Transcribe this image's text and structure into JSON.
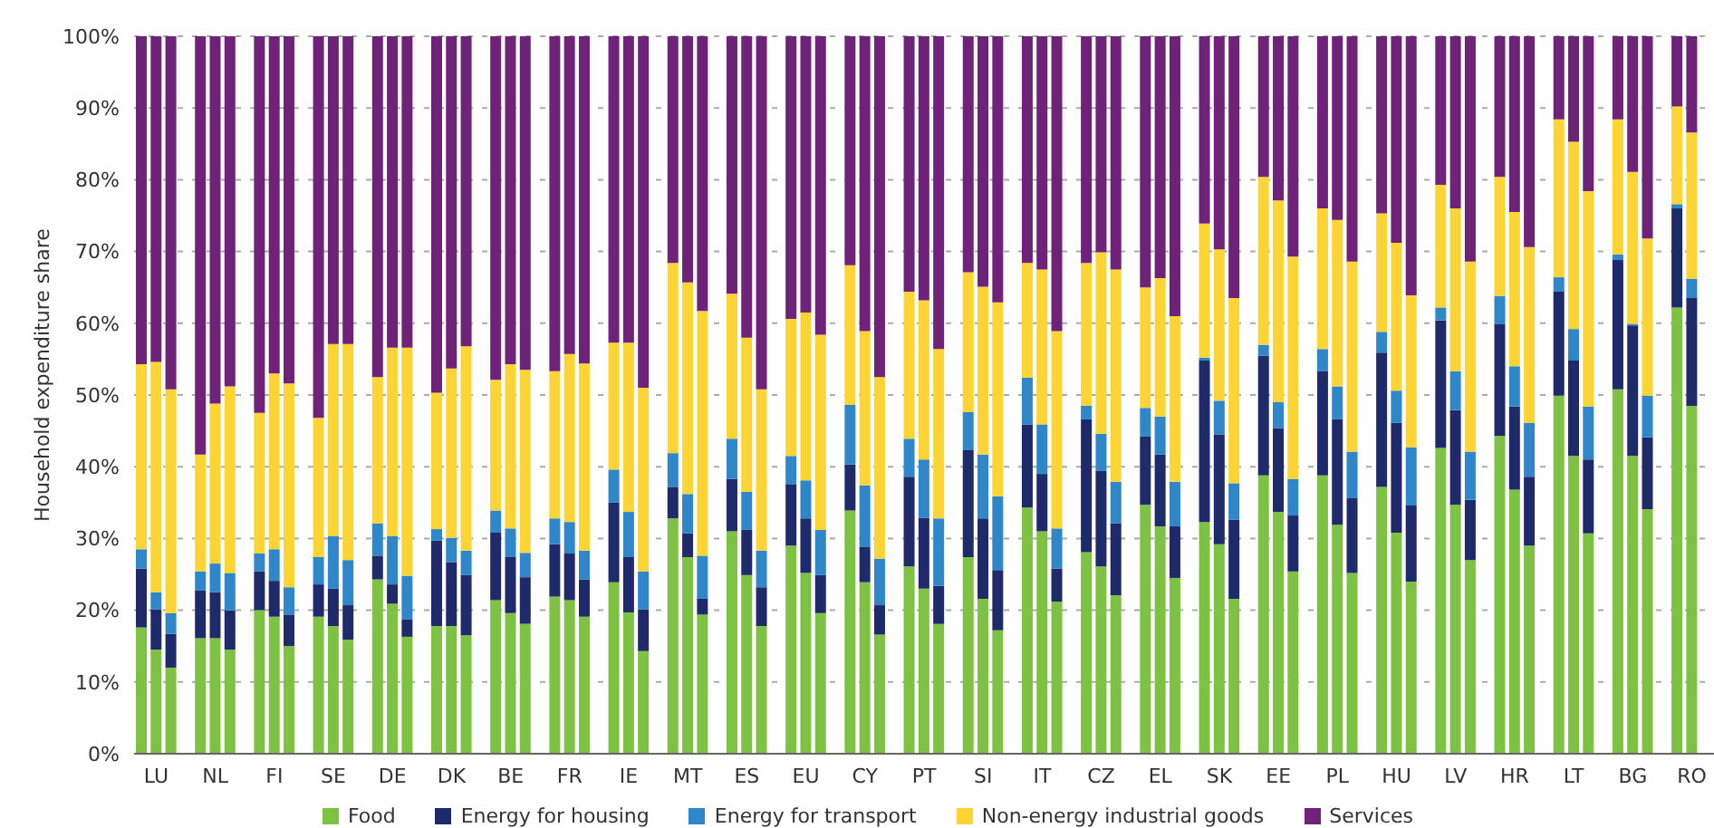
{
  "chart_data": {
    "type": "bar",
    "stacked": true,
    "ylabel": "Household expenditure share",
    "categories": [
      null,
      "LU",
      null,
      null,
      null,
      "NL",
      null,
      null,
      null,
      "FI",
      null,
      null,
      null,
      "SE",
      null,
      null,
      null,
      "DE",
      null,
      null,
      null,
      "DK",
      null,
      null,
      null,
      "BE",
      null,
      null,
      null,
      "FR",
      null,
      null,
      null,
      "IE",
      null,
      null,
      null,
      "MT",
      null,
      null,
      null,
      "ES",
      null,
      null,
      null,
      "EU",
      null,
      null,
      null,
      "CY",
      null,
      null,
      null,
      "PT",
      null,
      null,
      null,
      "SI",
      null,
      null,
      null,
      "IT",
      null,
      null,
      null,
      "CZ",
      null,
      null,
      null,
      "EL",
      null,
      null,
      null,
      "SK",
      null,
      null,
      null,
      "EE",
      null,
      null,
      null,
      "PL",
      null,
      null,
      null,
      "HU",
      null,
      null,
      null,
      "LV",
      null,
      null,
      null,
      "HR",
      null,
      null,
      null,
      "LT",
      null,
      null,
      null,
      "BG",
      null,
      null,
      null,
      "RO",
      null
    ],
    "series": [
      {
        "name": "Food",
        "color": "#7dc242",
        "values": [
          17.6,
          14.5,
          12.0,
          null,
          16.1,
          16.1,
          14.5,
          null,
          20.0,
          19.1,
          15.0,
          null,
          19.1,
          17.8,
          15.9,
          null,
          24.3,
          20.9,
          16.3,
          null,
          17.8,
          17.8,
          16.5,
          null,
          21.4,
          19.6,
          18.1,
          null,
          21.9,
          21.4,
          19.1,
          null,
          23.9,
          19.7,
          14.3,
          null,
          32.8,
          27.4,
          19.4,
          null,
          31.0,
          24.9,
          17.8,
          null,
          29.0,
          25.2,
          19.6,
          null,
          33.9,
          23.9,
          16.6,
          null,
          26.1,
          23.0,
          18.1,
          null,
          27.4,
          21.6,
          17.2,
          null,
          34.3,
          31.0,
          21.2,
          null,
          28.1,
          26.1,
          22.1,
          null,
          34.7,
          31.7,
          24.5,
          null,
          32.3,
          29.2,
          21.6,
          null,
          38.8,
          33.7,
          25.4,
          null,
          38.8,
          31.9,
          25.2,
          null,
          37.2,
          30.8,
          24.0,
          null,
          42.6,
          34.7,
          27.0,
          null,
          44.3,
          36.8,
          29.0,
          null,
          49.9,
          41.5,
          30.7,
          null,
          50.8,
          41.5,
          34.1,
          null,
          62.2,
          48.5,
          null
        ]
      },
      {
        "name": "Energy for housing",
        "color": "#1f2a6b",
        "values": [
          8.2,
          5.6,
          4.7,
          null,
          6.7,
          6.4,
          5.5,
          null,
          5.4,
          5.0,
          4.4,
          null,
          4.5,
          5.2,
          4.8,
          null,
          3.3,
          2.7,
          2.4,
          null,
          11.9,
          8.9,
          8.4,
          null,
          9.4,
          7.8,
          6.5,
          null,
          7.3,
          6.5,
          5.2,
          null,
          11.1,
          7.7,
          5.8,
          null,
          4.4,
          3.3,
          2.2,
          null,
          7.3,
          6.3,
          5.4,
          null,
          8.5,
          7.6,
          5.3,
          null,
          6.4,
          4.9,
          4.1,
          null,
          12.5,
          9.9,
          5.3,
          null,
          14.9,
          11.2,
          8.4,
          null,
          11.6,
          8.0,
          4.6,
          null,
          18.5,
          13.3,
          10.0,
          null,
          9.5,
          10.0,
          7.2,
          null,
          22.5,
          15.3,
          11.0,
          null,
          16.7,
          11.7,
          7.8,
          null,
          14.5,
          14.7,
          10.4,
          null,
          18.7,
          15.3,
          10.6,
          null,
          17.8,
          13.2,
          8.4,
          null,
          15.6,
          11.6,
          9.6,
          null,
          14.5,
          13.3,
          10.3,
          null,
          18.0,
          18.2,
          10.0,
          null,
          13.8,
          15.0,
          null
        ]
      },
      {
        "name": "Energy for transport",
        "color": "#2f86c8",
        "values": [
          2.7,
          2.4,
          2.9,
          null,
          2.6,
          4.0,
          5.2,
          null,
          2.5,
          4.4,
          3.8,
          null,
          3.8,
          7.3,
          6.3,
          null,
          4.5,
          6.7,
          6.1,
          null,
          1.6,
          3.4,
          3.4,
          null,
          3.1,
          4.0,
          3.4,
          null,
          3.6,
          4.4,
          4.0,
          null,
          4.6,
          6.3,
          5.3,
          null,
          4.7,
          5.5,
          6.0,
          null,
          5.6,
          5.3,
          5.1,
          null,
          4.0,
          5.3,
          6.3,
          null,
          8.3,
          8.6,
          6.5,
          null,
          5.3,
          8.1,
          9.4,
          null,
          5.3,
          8.9,
          10.3,
          null,
          6.5,
          6.9,
          5.6,
          null,
          1.9,
          5.2,
          5.8,
          null,
          4.0,
          5.3,
          6.2,
          null,
          0.4,
          4.7,
          5.1,
          null,
          1.5,
          3.6,
          5.1,
          null,
          3.1,
          4.6,
          6.5,
          null,
          2.9,
          4.5,
          8.1,
          null,
          1.8,
          5.4,
          6.7,
          null,
          3.9,
          5.6,
          7.5,
          null,
          2.0,
          4.4,
          7.4,
          null,
          0.8,
          0.2,
          5.8,
          null,
          0.6,
          2.7,
          null
        ]
      },
      {
        "name": "Non-energy industrial goods",
        "color": "#fcd535",
        "values": [
          25.8,
          32.1,
          31.2,
          null,
          16.3,
          22.3,
          26.0,
          null,
          19.6,
          24.5,
          28.4,
          null,
          19.4,
          26.8,
          30.1,
          null,
          20.4,
          26.3,
          31.8,
          null,
          19.0,
          23.6,
          28.5,
          null,
          18.2,
          22.9,
          25.5,
          null,
          20.5,
          23.4,
          26.1,
          null,
          17.7,
          23.6,
          25.6,
          null,
          26.5,
          29.5,
          34.1,
          null,
          20.2,
          21.5,
          22.5,
          null,
          19.1,
          23.4,
          27.2,
          null,
          19.5,
          21.5,
          25.3,
          null,
          20.5,
          22.2,
          23.6,
          null,
          19.5,
          23.4,
          27.0,
          null,
          16.0,
          21.6,
          27.5,
          null,
          19.9,
          25.3,
          29.6,
          null,
          16.8,
          19.3,
          23.1,
          null,
          18.7,
          21.1,
          25.8,
          null,
          23.4,
          28.1,
          31.0,
          null,
          19.6,
          23.2,
          26.5,
          null,
          16.5,
          20.6,
          21.2,
          null,
          17.1,
          22.7,
          26.5,
          null,
          16.6,
          21.5,
          24.5,
          null,
          22.0,
          26.1,
          30.0,
          null,
          18.8,
          21.2,
          21.9,
          null,
          13.6,
          20.4,
          null
        ]
      },
      {
        "name": "Services",
        "color": "#6e2378",
        "values": [
          45.7,
          45.4,
          49.2,
          null,
          58.3,
          51.2,
          48.8,
          null,
          52.5,
          47.0,
          48.4,
          null,
          53.2,
          42.9,
          42.9,
          null,
          47.5,
          43.4,
          43.4,
          null,
          49.7,
          46.3,
          43.2,
          null,
          47.9,
          45.7,
          46.5,
          null,
          46.7,
          44.3,
          45.6,
          null,
          42.7,
          42.7,
          49.0,
          null,
          31.6,
          34.3,
          38.3,
          null,
          35.9,
          42.0,
          49.2,
          null,
          39.4,
          38.5,
          41.6,
          null,
          31.9,
          41.1,
          47.5,
          null,
          35.6,
          36.8,
          43.6,
          null,
          32.9,
          34.9,
          37.1,
          null,
          31.6,
          32.5,
          41.1,
          null,
          31.6,
          30.1,
          32.5,
          null,
          35.0,
          33.7,
          39.0,
          null,
          26.1,
          29.7,
          36.5,
          null,
          19.6,
          22.9,
          30.7,
          null,
          24.0,
          25.6,
          31.4,
          null,
          24.7,
          28.8,
          36.1,
          null,
          20.7,
          24.0,
          31.4,
          null,
          19.6,
          24.5,
          29.4,
          null,
          11.6,
          14.7,
          21.6,
          null,
          11.6,
          18.9,
          28.2,
          null,
          9.8,
          13.4,
          null
        ]
      }
    ],
    "ylim": [
      0,
      100
    ],
    "yticks": [
      {
        "value": 0,
        "label": "0%"
      },
      {
        "value": 10,
        "label": "10%"
      },
      {
        "value": 20,
        "label": "20%"
      },
      {
        "value": 30,
        "label": "30%"
      },
      {
        "value": 40,
        "label": "40%"
      },
      {
        "value": 50,
        "label": "50%"
      },
      {
        "value": 60,
        "label": "60%"
      },
      {
        "value": 70,
        "label": "70%"
      },
      {
        "value": 80,
        "label": "80%"
      },
      {
        "value": 90,
        "label": "90%"
      },
      {
        "value": 100,
        "label": "100%"
      }
    ],
    "grid": "y",
    "legend": "bottom"
  }
}
